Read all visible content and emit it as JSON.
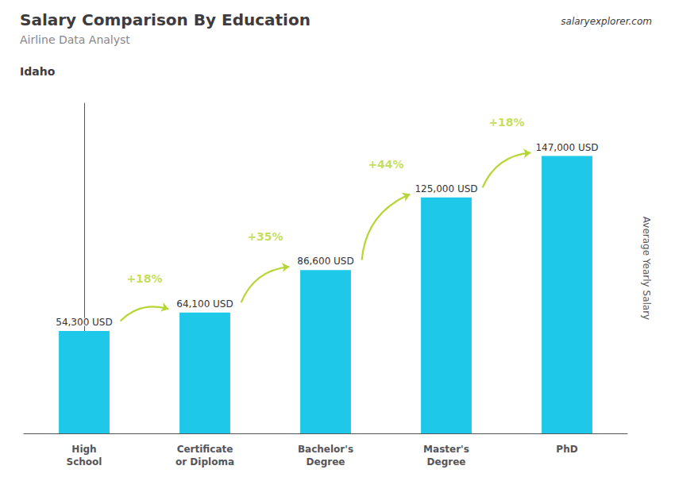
{
  "chart_data": {
    "type": "bar",
    "title": "Salary Comparison By Education",
    "subtitle": "Airline Data Analyst",
    "annotations": [
      "Idaho",
      "salaryexplorer.com"
    ],
    "ylabel": "Average Yearly Salary",
    "categories": [
      "High\nSchool",
      "Certificate\nor Diploma",
      "Bachelor's\nDegree",
      "Master's\nDegree",
      "PhD"
    ],
    "values": [
      54300,
      64100,
      86600,
      125000,
      147000
    ],
    "value_labels": [
      "54,300 USD",
      "64,100 USD",
      "86,600 USD",
      "125,000 USD",
      "147,000 USD"
    ],
    "change_labels": [
      "+18%",
      "+35%",
      "+44%",
      "+18%"
    ],
    "color": "#1ec8e8",
    "ylim": [
      0,
      175000
    ],
    "grid": false,
    "data_labels": true,
    "tick_labels": "x"
  }
}
